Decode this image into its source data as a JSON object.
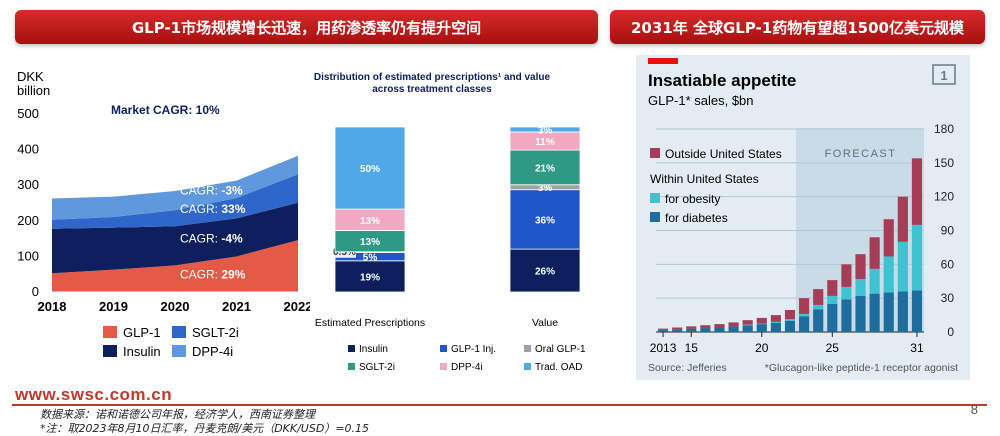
{
  "banners": {
    "left": "GLP-1市场规模增长迅速，用药渗透率仍有提升空间",
    "right": "2031年 全球GLP-1药物有望超1500亿美元规模"
  },
  "footer": {
    "url": "www.swsc.com.cn",
    "source_note": "数据来源：诺和诺德公司年报，经济学人，西南证券整理",
    "fx_note": "*注：取2023年8月10日汇率，丹麦克朗/美元（DKK/USD）=0.15",
    "page_number": "8"
  },
  "colors": {
    "glp1": "#e35b46",
    "insulin": "#0d1f5c",
    "sglt2i": "#2f66c9",
    "dpp4i": "#5f98dd",
    "inj": "#1f56c8",
    "oral": "#9aa3ad",
    "sglt2_bar": "#2e9a86",
    "dpp4_bar": "#f0a9c1",
    "trad_oad": "#4ea9e6",
    "econ_outside": "#a63c55",
    "econ_obesity": "#3ec3d3",
    "econ_diabetes": "#1d6e9e"
  },
  "chart_data": [
    {
      "type": "area",
      "stacked": true,
      "ylabel": "DKK\nbillion",
      "ylim": [
        0,
        500
      ],
      "yticks": [
        "0",
        "100",
        "200",
        "300",
        "400",
        "500"
      ],
      "categories": [
        "2018",
        "2019",
        "2020",
        "2021",
        "2022"
      ],
      "annotation": "Market CAGR: 10%",
      "series": [
        {
          "name": "GLP-1",
          "cagr": "CAGR: 29%",
          "values": [
            50,
            60,
            72,
            97,
            143
          ]
        },
        {
          "name": "Insulin",
          "cagr": "CAGR: -4%",
          "values": [
            125,
            118,
            110,
            107,
            105
          ]
        },
        {
          "name": "SGLT-2i",
          "cagr": "CAGR: 33%",
          "values": [
            25,
            30,
            45,
            57,
            80
          ]
        },
        {
          "name": "DPP-4i",
          "cagr": "CAGR: -3%",
          "values": [
            60,
            57,
            54,
            49,
            52
          ]
        }
      ],
      "legend": [
        "GLP-1",
        "SGLT-2i",
        "Insulin",
        "DPP-4i"
      ]
    },
    {
      "type": "bar",
      "stacked": "100%",
      "title": "Distribution of estimated prescriptions¹ and value across treatment classes",
      "categories": [
        "Estimated Prescriptions",
        "Value"
      ],
      "series": [
        {
          "name": "Insulin",
          "values": [
            19,
            26
          ],
          "labels": [
            "19%",
            "26%"
          ]
        },
        {
          "name": "GLP-1 Inj.",
          "values": [
            5,
            36
          ],
          "labels": [
            "5%",
            "36%"
          ]
        },
        {
          "name": "Oral GLP-1",
          "values": [
            0.5,
            3
          ],
          "labels": [
            "0.5%",
            "3%"
          ]
        },
        {
          "name": "SGLT-2i",
          "values": [
            13,
            21
          ],
          "labels": [
            "13%",
            "21%"
          ]
        },
        {
          "name": "DPP-4i",
          "values": [
            13,
            11
          ],
          "labels": [
            "13%",
            "11%"
          ]
        },
        {
          "name": "Trad. OAD",
          "values": [
            50,
            3
          ],
          "labels": [
            "50%",
            "3%"
          ]
        }
      ]
    },
    {
      "type": "bar",
      "stacked": true,
      "title": "Insatiable appetite",
      "subtitle": "GLP-1* sales, $bn",
      "badge": "1",
      "ylim": [
        0,
        180
      ],
      "yticks": [
        "0",
        "30",
        "60",
        "90",
        "120",
        "150",
        "180"
      ],
      "xticks": [
        "2013",
        "15",
        "20",
        "25",
        "31"
      ],
      "forecast_label": "FORECAST",
      "legend_heading": "Within United States",
      "series_legend": [
        "Outside United States",
        "for obesity",
        "for diabetes"
      ],
      "source": "Source: Jefferies",
      "footnote": "*Glucagon-like peptide-1 receptor agonist",
      "years": [
        2013,
        2014,
        2015,
        2016,
        2017,
        2018,
        2019,
        2020,
        2021,
        2022,
        2023,
        2024,
        2025,
        2026,
        2027,
        2028,
        2029,
        2030,
        2031
      ],
      "forecast_from": 2023,
      "series": [
        {
          "name": "for diabetes",
          "values": [
            2,
            2.5,
            3,
            3.5,
            4,
            5,
            6,
            7,
            8,
            10,
            14,
            20,
            25,
            29,
            32,
            34,
            35,
            36,
            37
          ]
        },
        {
          "name": "for obesity",
          "values": [
            0,
            0,
            0,
            0,
            0,
            0,
            0.5,
            0.5,
            1,
            1.5,
            2,
            4,
            7,
            11,
            15,
            22,
            32,
            44,
            58
          ]
        },
        {
          "name": "Outside United States",
          "values": [
            1,
            1.5,
            2,
            2.5,
            3,
            3.5,
            4,
            5,
            6,
            8,
            14,
            14,
            14,
            20,
            22,
            28,
            33,
            40,
            59
          ]
        }
      ]
    }
  ]
}
